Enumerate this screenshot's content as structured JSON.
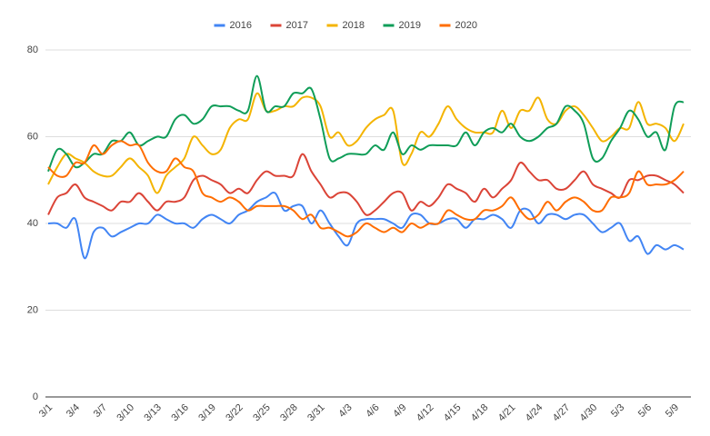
{
  "chart_data": {
    "type": "line",
    "categories": [
      "3/1",
      null,
      null,
      "3/4",
      null,
      null,
      "3/7",
      null,
      null,
      "3/10",
      null,
      null,
      "3/13",
      null,
      null,
      "3/16",
      null,
      null,
      "3/19",
      null,
      null,
      "3/22",
      null,
      null,
      "3/25",
      null,
      null,
      "3/28",
      null,
      null,
      "3/31",
      null,
      null,
      "4/3",
      null,
      null,
      "4/6",
      null,
      null,
      "4/9",
      null,
      null,
      "4/12",
      null,
      null,
      "4/15",
      null,
      null,
      "4/18",
      null,
      null,
      "4/21",
      null,
      null,
      "4/24",
      null,
      null,
      "4/27",
      null,
      null,
      "4/30",
      null,
      null,
      "5/3",
      null,
      null,
      "5/6",
      null,
      null,
      "5/9",
      null
    ],
    "series": [
      {
        "name": "2016",
        "color": "#4285f4",
        "values": [
          40,
          40,
          39,
          41,
          32,
          38,
          39,
          37,
          38,
          39,
          40,
          40,
          42,
          41,
          40,
          40,
          39,
          41,
          42,
          41,
          40,
          42,
          43,
          45,
          46,
          47,
          43,
          44,
          44,
          40,
          43,
          40,
          37,
          35,
          40,
          41,
          41,
          41,
          40,
          39,
          42,
          42,
          40,
          40,
          41,
          41,
          39,
          41,
          41,
          42,
          41,
          39,
          43,
          43,
          40,
          42,
          42,
          41,
          42,
          42,
          40,
          38,
          39,
          40,
          36,
          37,
          33,
          35,
          34,
          35,
          34
        ]
      },
      {
        "name": "2017",
        "color": "#db4437",
        "values": [
          42,
          46,
          47,
          49,
          46,
          45,
          44,
          43,
          45,
          45,
          47,
          45,
          43,
          45,
          45,
          46,
          50,
          51,
          50,
          49,
          47,
          48,
          47,
          50,
          52,
          51,
          51,
          51,
          56,
          52,
          49,
          46,
          47,
          47,
          45,
          42,
          43,
          45,
          47,
          47,
          43,
          45,
          44,
          46,
          49,
          48,
          47,
          45,
          48,
          46,
          48,
          50,
          54,
          52,
          50,
          50,
          48,
          48,
          50,
          52,
          49,
          48,
          47,
          46,
          50,
          50,
          51,
          51,
          50,
          49,
          47
        ]
      },
      {
        "name": "2018",
        "color": "#f4b400",
        "values": [
          49,
          53,
          56,
          55,
          54,
          52,
          51,
          51,
          53,
          55,
          53,
          51,
          47,
          51,
          53,
          55,
          60,
          58,
          56,
          57,
          62,
          64,
          64,
          70,
          66,
          66,
          67,
          67,
          69,
          69,
          67,
          60,
          61,
          58,
          59,
          62,
          64,
          65,
          66,
          54,
          56,
          61,
          60,
          63,
          67,
          64,
          62,
          61,
          61,
          61,
          66,
          62,
          66,
          66,
          69,
          64,
          63,
          66,
          67,
          65,
          62,
          59,
          60,
          62,
          62,
          68,
          63,
          63,
          62,
          59,
          63
        ]
      },
      {
        "name": "2019",
        "color": "#0f9d58",
        "values": [
          52,
          57,
          56,
          53,
          54,
          56,
          56,
          59,
          59,
          61,
          58,
          59,
          60,
          60,
          64,
          65,
          63,
          64,
          67,
          67,
          67,
          66,
          66,
          74,
          66,
          67,
          67,
          70,
          70,
          71,
          64,
          55,
          55,
          56,
          56,
          56,
          58,
          57,
          61,
          56,
          58,
          57,
          58,
          58,
          58,
          58,
          61,
          58,
          61,
          62,
          61,
          63,
          60,
          59,
          60,
          62,
          63,
          67,
          66,
          63,
          55,
          55,
          59,
          62,
          66,
          64,
          60,
          61,
          57,
          67,
          68
        ]
      },
      {
        "name": "2020",
        "color": "#ff6d01",
        "values": [
          53,
          51,
          51,
          54,
          54,
          58,
          56,
          58,
          59,
          58,
          58,
          54,
          52,
          52,
          55,
          53,
          52,
          47,
          46,
          45,
          46,
          45,
          43,
          44,
          44,
          44,
          44,
          43,
          41,
          42,
          39,
          39,
          38,
          37,
          38,
          40,
          39,
          38,
          39,
          38,
          40,
          39,
          40,
          40,
          43,
          42,
          41,
          41,
          43,
          43,
          44,
          46,
          43,
          41,
          42,
          45,
          43,
          45,
          46,
          45,
          43,
          43,
          46,
          46,
          47,
          52,
          49,
          49,
          49,
          50,
          52
        ]
      }
    ],
    "ylim": [
      0,
      80
    ],
    "yticks": [
      0,
      20,
      40,
      60,
      80
    ],
    "grid": true,
    "legend": "top"
  }
}
